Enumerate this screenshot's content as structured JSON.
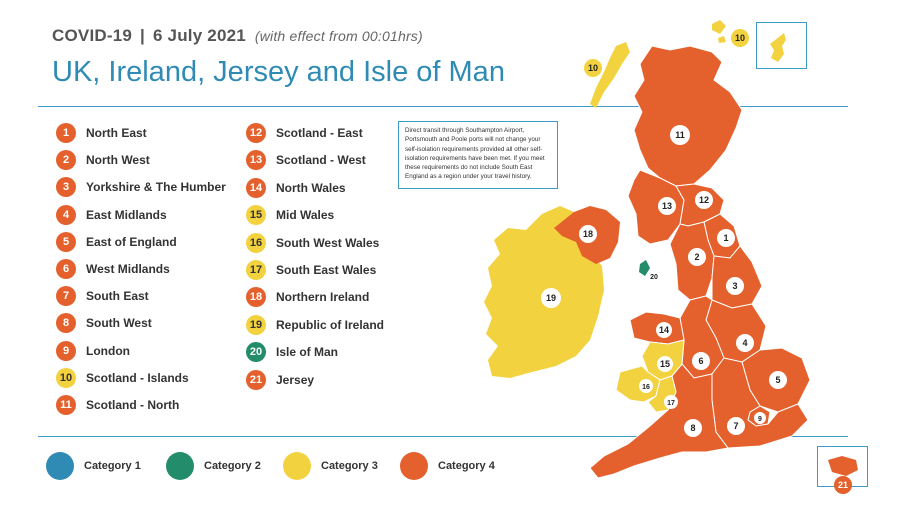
{
  "header": {
    "topic": "COVID-19",
    "separator": "|",
    "date": "6 July 2021",
    "effect": "(with effect from 00:01hrs)",
    "title": "UK, Ireland, Jersey and Isle of Man"
  },
  "colors": {
    "category_1": "#2f8bb4",
    "category_2": "#238c6a",
    "category_3": "#f3d240",
    "category_4": "#e4602c",
    "accent_rule": "#3d9bc5"
  },
  "regions": [
    {
      "number": "1",
      "name": "North East",
      "category": 4
    },
    {
      "number": "2",
      "name": "North West",
      "category": 4
    },
    {
      "number": "3",
      "name": "Yorkshire & The Humber",
      "category": 4
    },
    {
      "number": "4",
      "name": "East Midlands",
      "category": 4
    },
    {
      "number": "5",
      "name": "East of England",
      "category": 4
    },
    {
      "number": "6",
      "name": "West Midlands",
      "category": 4
    },
    {
      "number": "7",
      "name": "South East",
      "category": 4
    },
    {
      "number": "8",
      "name": "South West",
      "category": 4
    },
    {
      "number": "9",
      "name": "London",
      "category": 4
    },
    {
      "number": "10",
      "name": "Scotland - Islands",
      "category": 3
    },
    {
      "number": "11",
      "name": "Scotland - North",
      "category": 4
    },
    {
      "number": "12",
      "name": "Scotland - East",
      "category": 4
    },
    {
      "number": "13",
      "name": "Scotland - West",
      "category": 4
    },
    {
      "number": "14",
      "name": "North Wales",
      "category": 4
    },
    {
      "number": "15",
      "name": "Mid Wales",
      "category": 3
    },
    {
      "number": "16",
      "name": "South West Wales",
      "category": 3
    },
    {
      "number": "17",
      "name": "South East Wales",
      "category": 3
    },
    {
      "number": "18",
      "name": "Northern Ireland",
      "category": 4
    },
    {
      "number": "19",
      "name": "Republic of Ireland",
      "category": 3
    },
    {
      "number": "20",
      "name": "Isle of Man",
      "category": 2
    },
    {
      "number": "21",
      "name": "Jersey",
      "category": 4
    }
  ],
  "note": "Direct transit through Southampton Airport, Portsmouth and Poole ports will not change your self-isolation requirements provided all other self-isolation requirements have been met. If you meet these requirements do not include South East England as a region under your travel history.",
  "categories": [
    {
      "label": "Category 1",
      "color": "#2f8bb4"
    },
    {
      "label": "Category 2",
      "color": "#238c6a"
    },
    {
      "label": "Category 3",
      "color": "#f3d240"
    },
    {
      "label": "Category 4",
      "color": "#e4602c"
    }
  ],
  "map_labels": {
    "shetland": "10",
    "hebrides": "10",
    "jersey": "21"
  }
}
